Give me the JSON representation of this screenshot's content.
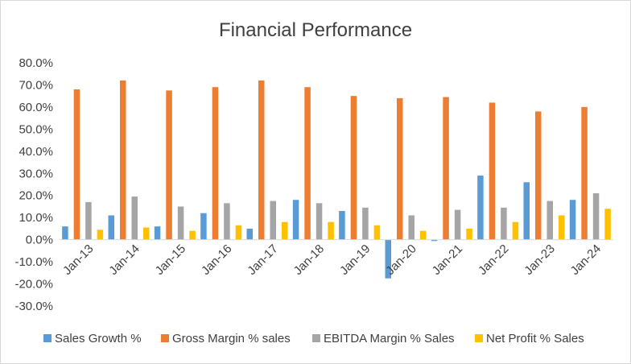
{
  "chart_data": {
    "type": "bar",
    "title": "Financial Performance",
    "xlabel": "",
    "ylabel": "",
    "categories": [
      "Jan-13",
      "Jan-14",
      "Jan-15",
      "Jan-16",
      "Jan-17",
      "Jan-18",
      "Jan-19",
      "Jan-20",
      "Jan-21",
      "Jan-22",
      "Jan-23",
      "Jan-24"
    ],
    "series": [
      {
        "name": "Sales Growth %",
        "color": "#5B9BD5",
        "values": [
          6.0,
          11.0,
          6.0,
          12.0,
          5.0,
          18.0,
          13.0,
          -17.5,
          -0.6,
          29.0,
          26.0,
          18.0
        ]
      },
      {
        "name": "Gross Margin % sales",
        "color": "#ED7D31",
        "values": [
          68.0,
          72.0,
          67.5,
          69.0,
          72.0,
          69.0,
          65.0,
          64.0,
          64.5,
          62.0,
          58.0,
          60.0
        ]
      },
      {
        "name": "EBITDA Margin % Sales",
        "color": "#A5A5A5",
        "values": [
          17.0,
          19.5,
          15.0,
          16.5,
          17.5,
          16.5,
          14.5,
          11.0,
          13.5,
          14.5,
          17.5,
          21.0
        ]
      },
      {
        "name": "Net Profit % Sales",
        "color": "#FFC000",
        "values": [
          4.5,
          5.5,
          4.0,
          6.5,
          8.0,
          8.0,
          6.5,
          4.0,
          5.0,
          8.0,
          11.0,
          14.0
        ]
      }
    ],
    "ylim": [
      -30,
      80
    ],
    "yticks": [
      "80.0%",
      "70.0%",
      "60.0%",
      "50.0%",
      "40.0%",
      "30.0%",
      "20.0%",
      "10.0%",
      "0.0%",
      "-10.0%",
      "-20.0%",
      "-30.0%"
    ],
    "grid": false,
    "legend_position": "bottom"
  }
}
